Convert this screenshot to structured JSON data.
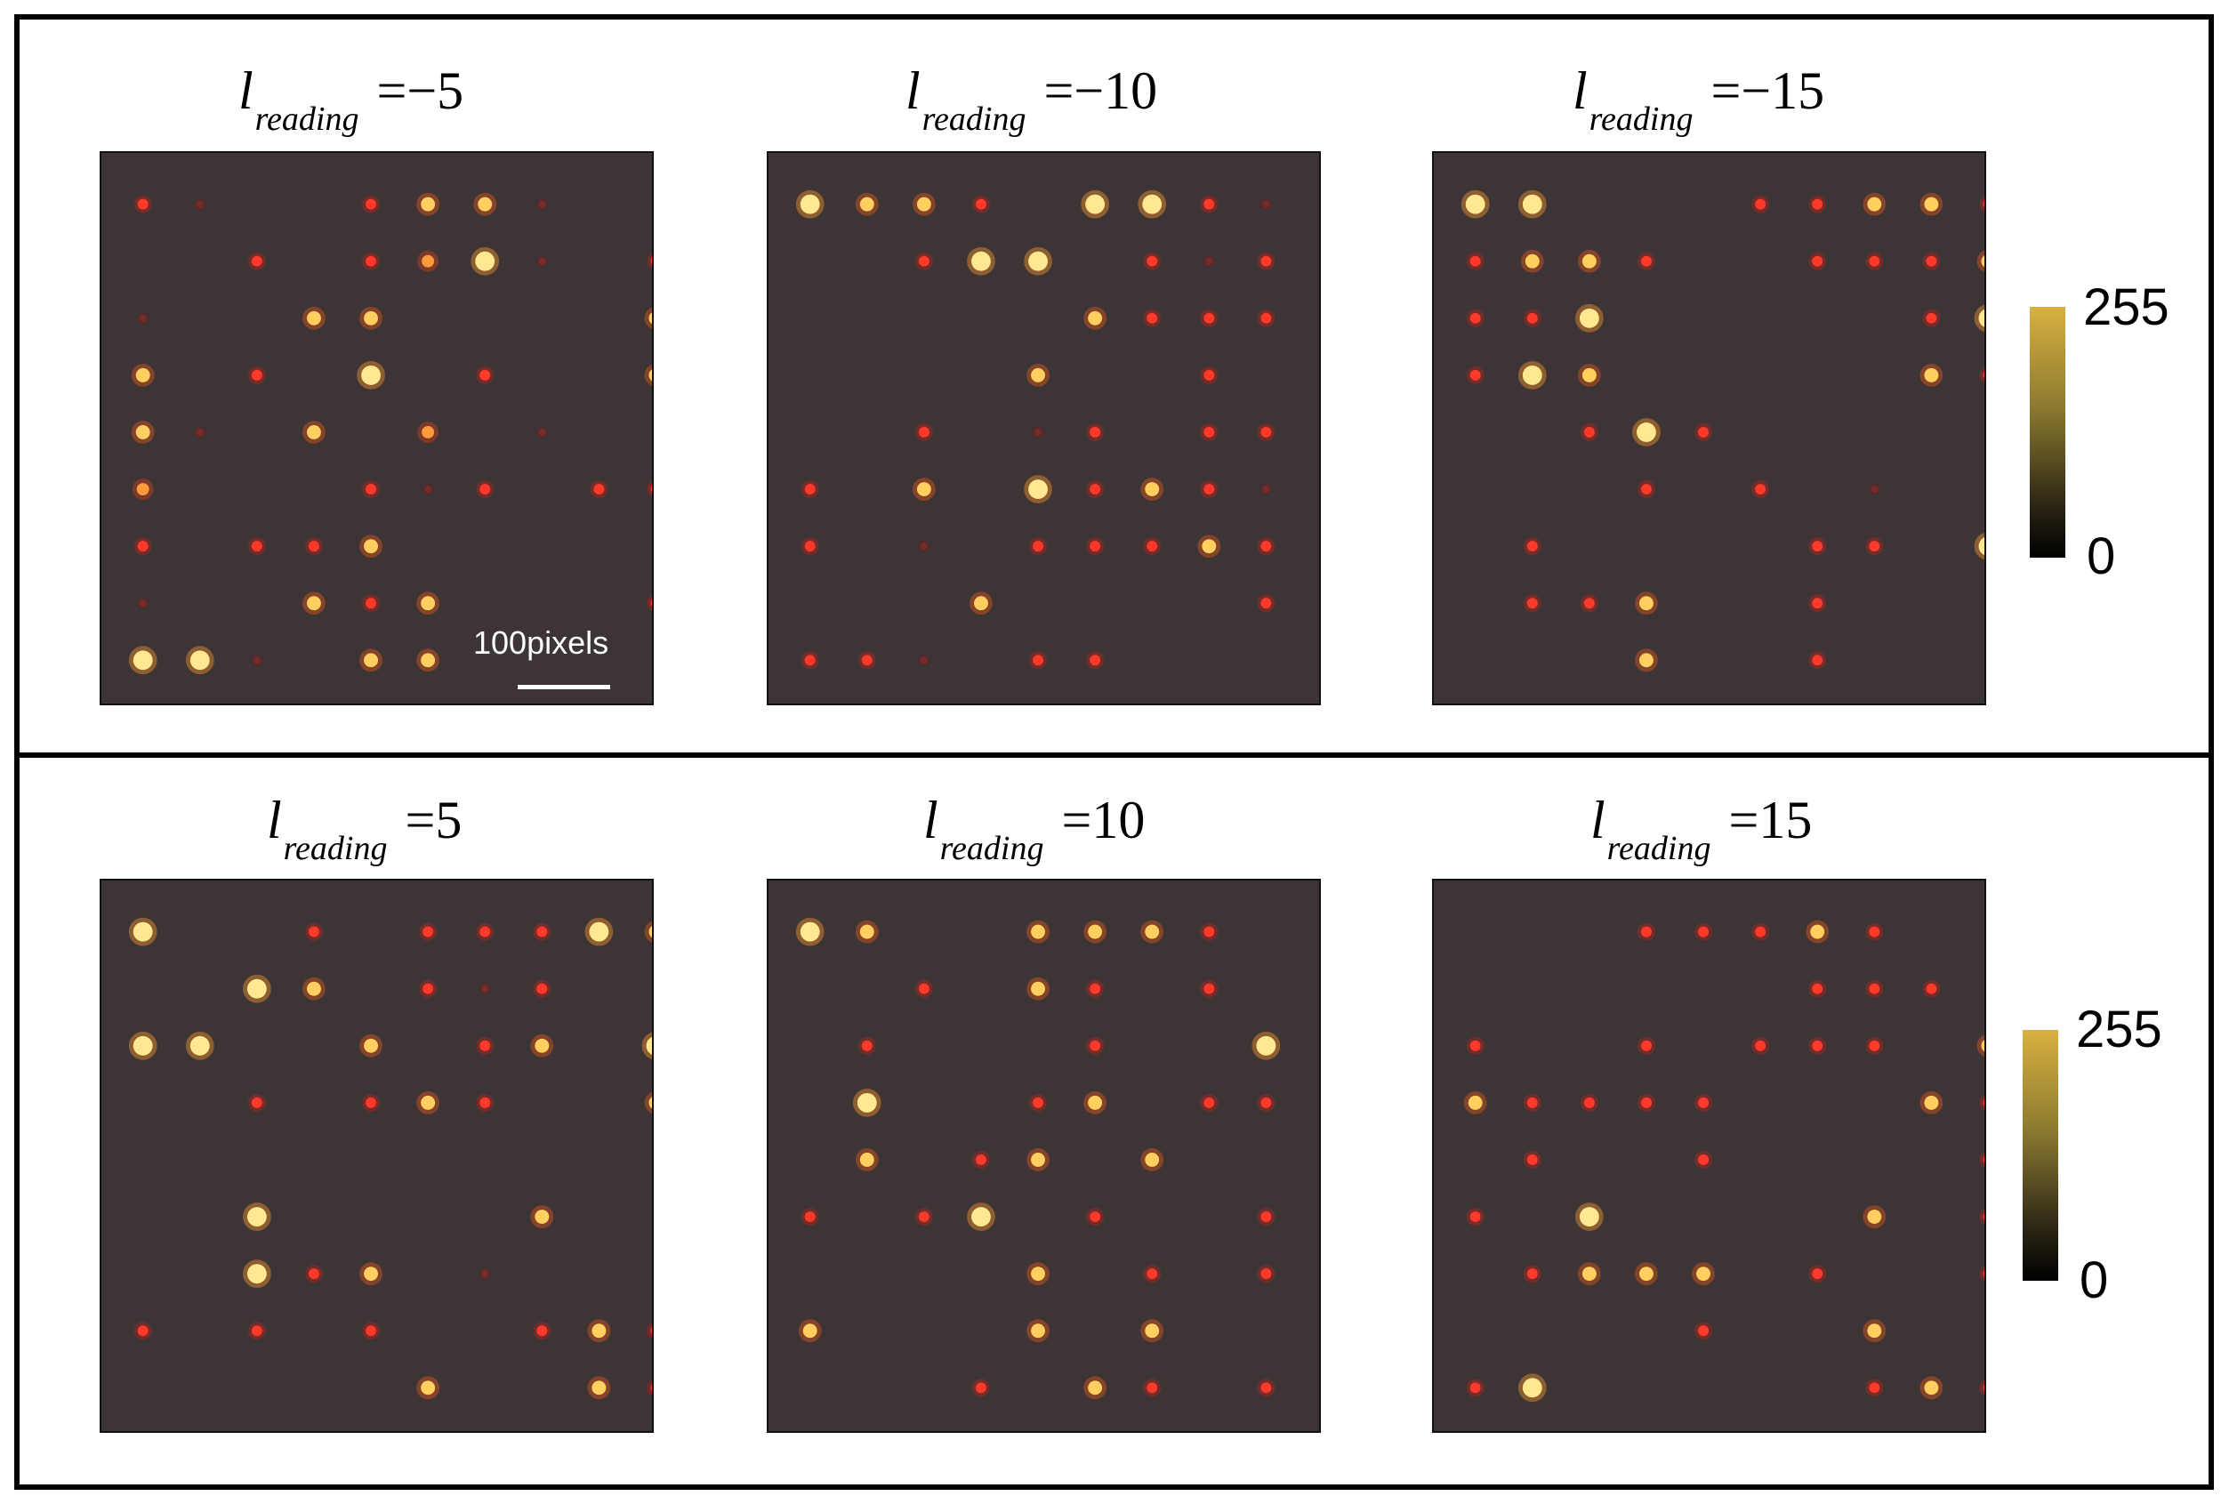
{
  "panels": [
    {
      "label_var": "l",
      "label_sub": "reading",
      "label_eq": "=−5",
      "spots": [
        [
          0,
          0,
          "r"
        ],
        [
          1,
          0,
          "d"
        ],
        [
          4,
          0,
          "r"
        ],
        [
          5,
          0,
          "y"
        ],
        [
          6,
          0,
          "y"
        ],
        [
          7,
          0,
          "d"
        ],
        [
          2,
          1,
          "r"
        ],
        [
          4,
          1,
          "r"
        ],
        [
          5,
          1,
          "o"
        ],
        [
          6,
          1,
          "Y"
        ],
        [
          7,
          1,
          "d"
        ],
        [
          9,
          1,
          "r"
        ],
        [
          0,
          2,
          "d"
        ],
        [
          3,
          2,
          "y"
        ],
        [
          4,
          2,
          "y"
        ],
        [
          9,
          2,
          "y"
        ],
        [
          0,
          3,
          "y"
        ],
        [
          2,
          3,
          "r"
        ],
        [
          4,
          3,
          "Y"
        ],
        [
          6,
          3,
          "r"
        ],
        [
          9,
          3,
          "y"
        ],
        [
          0,
          4,
          "y"
        ],
        [
          1,
          4,
          "d"
        ],
        [
          3,
          4,
          "y"
        ],
        [
          5,
          4,
          "o"
        ],
        [
          7,
          4,
          "d"
        ],
        [
          0,
          5,
          "o"
        ],
        [
          4,
          5,
          "r"
        ],
        [
          5,
          5,
          "d"
        ],
        [
          6,
          5,
          "r"
        ],
        [
          8,
          5,
          "r"
        ],
        [
          9,
          5,
          "r"
        ],
        [
          0,
          6,
          "r"
        ],
        [
          2,
          6,
          "r"
        ],
        [
          3,
          6,
          "r"
        ],
        [
          4,
          6,
          "y"
        ],
        [
          0,
          7,
          "d"
        ],
        [
          3,
          7,
          "y"
        ],
        [
          4,
          7,
          "r"
        ],
        [
          5,
          7,
          "y"
        ],
        [
          9,
          7,
          "r"
        ],
        [
          0,
          8,
          "Y"
        ],
        [
          1,
          8,
          "Y"
        ],
        [
          2,
          8,
          "d"
        ],
        [
          4,
          8,
          "y"
        ],
        [
          5,
          8,
          "y"
        ]
      ]
    },
    {
      "label_var": "l",
      "label_sub": "reading",
      "label_eq": "=−10",
      "spots": [
        [
          0,
          0,
          "Y"
        ],
        [
          1,
          0,
          "y"
        ],
        [
          2,
          0,
          "y"
        ],
        [
          3,
          0,
          "r"
        ],
        [
          5,
          0,
          "Y"
        ],
        [
          6,
          0,
          "Y"
        ],
        [
          7,
          0,
          "r"
        ],
        [
          8,
          0,
          "d"
        ],
        [
          2,
          1,
          "r"
        ],
        [
          3,
          1,
          "Y"
        ],
        [
          4,
          1,
          "Y"
        ],
        [
          6,
          1,
          "r"
        ],
        [
          7,
          1,
          "d"
        ],
        [
          8,
          1,
          "r"
        ],
        [
          5,
          2,
          "y"
        ],
        [
          6,
          2,
          "r"
        ],
        [
          7,
          2,
          "r"
        ],
        [
          8,
          2,
          "r"
        ],
        [
          4,
          3,
          "y"
        ],
        [
          7,
          3,
          "r"
        ],
        [
          2,
          4,
          "r"
        ],
        [
          4,
          4,
          "d"
        ],
        [
          5,
          4,
          "r"
        ],
        [
          7,
          4,
          "r"
        ],
        [
          8,
          4,
          "r"
        ],
        [
          0,
          5,
          "r"
        ],
        [
          2,
          5,
          "y"
        ],
        [
          4,
          5,
          "Y"
        ],
        [
          5,
          5,
          "r"
        ],
        [
          6,
          5,
          "y"
        ],
        [
          7,
          5,
          "r"
        ],
        [
          8,
          5,
          "d"
        ],
        [
          0,
          6,
          "r"
        ],
        [
          2,
          6,
          "d"
        ],
        [
          4,
          6,
          "r"
        ],
        [
          5,
          6,
          "r"
        ],
        [
          6,
          6,
          "r"
        ],
        [
          7,
          6,
          "y"
        ],
        [
          8,
          6,
          "r"
        ],
        [
          3,
          7,
          "y"
        ],
        [
          8,
          7,
          "r"
        ],
        [
          0,
          8,
          "r"
        ],
        [
          1,
          8,
          "r"
        ],
        [
          2,
          8,
          "d"
        ],
        [
          4,
          8,
          "r"
        ],
        [
          5,
          8,
          "r"
        ]
      ]
    },
    {
      "label_var": "l",
      "label_sub": "reading",
      "label_eq": "=−15",
      "spots": [
        [
          0,
          0,
          "Y"
        ],
        [
          1,
          0,
          "Y"
        ],
        [
          5,
          0,
          "r"
        ],
        [
          6,
          0,
          "r"
        ],
        [
          7,
          0,
          "y"
        ],
        [
          8,
          0,
          "y"
        ],
        [
          9,
          0,
          "r"
        ],
        [
          0,
          1,
          "r"
        ],
        [
          1,
          1,
          "y"
        ],
        [
          2,
          1,
          "y"
        ],
        [
          3,
          1,
          "r"
        ],
        [
          6,
          1,
          "r"
        ],
        [
          7,
          1,
          "r"
        ],
        [
          8,
          1,
          "r"
        ],
        [
          9,
          1,
          "y"
        ],
        [
          0,
          2,
          "r"
        ],
        [
          1,
          2,
          "r"
        ],
        [
          2,
          2,
          "Y"
        ],
        [
          8,
          2,
          "r"
        ],
        [
          9,
          2,
          "Y"
        ],
        [
          0,
          3,
          "r"
        ],
        [
          1,
          3,
          "Y"
        ],
        [
          2,
          3,
          "y"
        ],
        [
          8,
          3,
          "y"
        ],
        [
          9,
          3,
          "r"
        ],
        [
          2,
          4,
          "r"
        ],
        [
          3,
          4,
          "Y"
        ],
        [
          4,
          4,
          "r"
        ],
        [
          3,
          5,
          "r"
        ],
        [
          5,
          5,
          "r"
        ],
        [
          7,
          5,
          "d"
        ],
        [
          1,
          6,
          "r"
        ],
        [
          6,
          6,
          "r"
        ],
        [
          7,
          6,
          "r"
        ],
        [
          9,
          6,
          "Y"
        ],
        [
          1,
          7,
          "r"
        ],
        [
          2,
          7,
          "r"
        ],
        [
          3,
          7,
          "y"
        ],
        [
          6,
          7,
          "r"
        ],
        [
          3,
          8,
          "y"
        ],
        [
          6,
          8,
          "r"
        ]
      ]
    },
    {
      "label_var": "l",
      "label_sub": "reading",
      "label_eq": "=5",
      "spots": [
        [
          0,
          0,
          "Y"
        ],
        [
          3,
          0,
          "r"
        ],
        [
          5,
          0,
          "r"
        ],
        [
          6,
          0,
          "r"
        ],
        [
          7,
          0,
          "r"
        ],
        [
          8,
          0,
          "Y"
        ],
        [
          9,
          0,
          "y"
        ],
        [
          2,
          1,
          "Y"
        ],
        [
          3,
          1,
          "y"
        ],
        [
          5,
          1,
          "r"
        ],
        [
          6,
          1,
          "d"
        ],
        [
          7,
          1,
          "r"
        ],
        [
          0,
          2,
          "Y"
        ],
        [
          1,
          2,
          "Y"
        ],
        [
          4,
          2,
          "y"
        ],
        [
          6,
          2,
          "r"
        ],
        [
          7,
          2,
          "y"
        ],
        [
          9,
          2,
          "Y"
        ],
        [
          2,
          3,
          "r"
        ],
        [
          4,
          3,
          "r"
        ],
        [
          5,
          3,
          "y"
        ],
        [
          6,
          3,
          "r"
        ],
        [
          9,
          3,
          "y"
        ],
        [
          2,
          5,
          "Y"
        ],
        [
          7,
          5,
          "y"
        ],
        [
          2,
          6,
          "Y"
        ],
        [
          3,
          6,
          "r"
        ],
        [
          4,
          6,
          "y"
        ],
        [
          6,
          6,
          "d"
        ],
        [
          0,
          7,
          "r"
        ],
        [
          2,
          7,
          "r"
        ],
        [
          4,
          7,
          "r"
        ],
        [
          7,
          7,
          "r"
        ],
        [
          8,
          7,
          "y"
        ],
        [
          9,
          7,
          "r"
        ],
        [
          5,
          8,
          "y"
        ],
        [
          8,
          8,
          "y"
        ],
        [
          9,
          8,
          "r"
        ]
      ]
    },
    {
      "label_var": "l",
      "label_sub": "reading",
      "label_eq": "=10",
      "spots": [
        [
          0,
          0,
          "Y"
        ],
        [
          1,
          0,
          "y"
        ],
        [
          4,
          0,
          "y"
        ],
        [
          5,
          0,
          "y"
        ],
        [
          6,
          0,
          "y"
        ],
        [
          7,
          0,
          "r"
        ],
        [
          2,
          1,
          "r"
        ],
        [
          4,
          1,
          "y"
        ],
        [
          5,
          1,
          "r"
        ],
        [
          7,
          1,
          "r"
        ],
        [
          1,
          2,
          "r"
        ],
        [
          5,
          2,
          "r"
        ],
        [
          8,
          2,
          "Y"
        ],
        [
          1,
          3,
          "Y"
        ],
        [
          4,
          3,
          "r"
        ],
        [
          5,
          3,
          "y"
        ],
        [
          7,
          3,
          "r"
        ],
        [
          8,
          3,
          "r"
        ],
        [
          1,
          4,
          "y"
        ],
        [
          3,
          4,
          "r"
        ],
        [
          4,
          4,
          "y"
        ],
        [
          6,
          4,
          "y"
        ],
        [
          0,
          5,
          "r"
        ],
        [
          2,
          5,
          "r"
        ],
        [
          3,
          5,
          "Y"
        ],
        [
          5,
          5,
          "r"
        ],
        [
          8,
          5,
          "r"
        ],
        [
          4,
          6,
          "y"
        ],
        [
          6,
          6,
          "r"
        ],
        [
          8,
          6,
          "r"
        ],
        [
          0,
          7,
          "y"
        ],
        [
          4,
          7,
          "y"
        ],
        [
          6,
          7,
          "y"
        ],
        [
          3,
          8,
          "r"
        ],
        [
          5,
          8,
          "y"
        ],
        [
          6,
          8,
          "r"
        ],
        [
          8,
          8,
          "r"
        ]
      ]
    },
    {
      "label_var": "l",
      "label_sub": "reading",
      "label_eq": "=15",
      "spots": [
        [
          3,
          0,
          "r"
        ],
        [
          4,
          0,
          "r"
        ],
        [
          5,
          0,
          "r"
        ],
        [
          6,
          0,
          "y"
        ],
        [
          7,
          0,
          "r"
        ],
        [
          6,
          1,
          "r"
        ],
        [
          7,
          1,
          "r"
        ],
        [
          8,
          1,
          "r"
        ],
        [
          0,
          2,
          "r"
        ],
        [
          3,
          2,
          "r"
        ],
        [
          5,
          2,
          "r"
        ],
        [
          6,
          2,
          "r"
        ],
        [
          7,
          2,
          "r"
        ],
        [
          9,
          2,
          "y"
        ],
        [
          0,
          3,
          "y"
        ],
        [
          1,
          3,
          "r"
        ],
        [
          2,
          3,
          "r"
        ],
        [
          3,
          3,
          "r"
        ],
        [
          4,
          3,
          "r"
        ],
        [
          8,
          3,
          "y"
        ],
        [
          9,
          3,
          "r"
        ],
        [
          1,
          4,
          "r"
        ],
        [
          4,
          4,
          "r"
        ],
        [
          9,
          4,
          "r"
        ],
        [
          0,
          5,
          "r"
        ],
        [
          2,
          5,
          "Y"
        ],
        [
          7,
          5,
          "y"
        ],
        [
          9,
          5,
          "r"
        ],
        [
          1,
          6,
          "r"
        ],
        [
          2,
          6,
          "y"
        ],
        [
          3,
          6,
          "y"
        ],
        [
          4,
          6,
          "y"
        ],
        [
          6,
          6,
          "r"
        ],
        [
          9,
          6,
          "r"
        ],
        [
          4,
          7,
          "r"
        ],
        [
          7,
          7,
          "y"
        ],
        [
          0,
          8,
          "r"
        ],
        [
          1,
          8,
          "Y"
        ],
        [
          7,
          8,
          "r"
        ],
        [
          8,
          8,
          "y"
        ],
        [
          9,
          8,
          "r"
        ]
      ]
    }
  ],
  "scalebar": {
    "label": "100pixels"
  },
  "colorbars": [
    {
      "max_label": "255",
      "min_label": "0"
    },
    {
      "max_label": "255",
      "min_label": "0"
    }
  ],
  "colors": {
    "background": "#3d3535",
    "colormap_high": "#d8b040",
    "colormap_low": "#000000"
  }
}
